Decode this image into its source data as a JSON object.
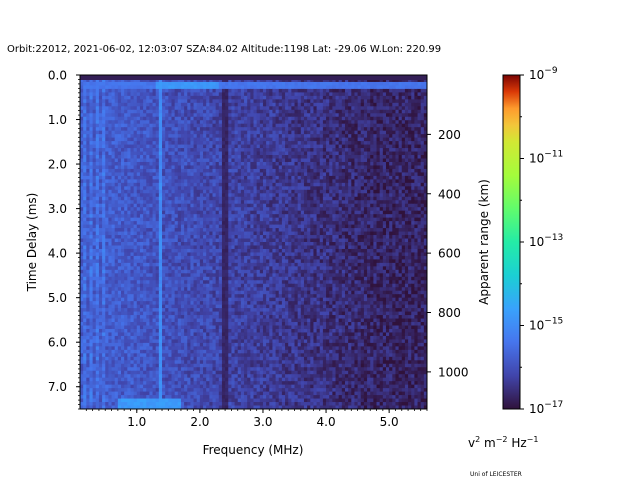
{
  "header_text": "Orbit:22012, 2021-06-02, 12:03:07 SZA:84.02 Altitude:1198 Lat: -29.06 W.Lon: 220.99",
  "credit_text": "Uni of LEICESTER",
  "chart_data": {
    "type": "heatmap",
    "title": "Orbit:22012, 2021-06-02, 12:03:07 SZA:84.02 Altitude:1198 Lat: -29.06 W.Lon: 220.99",
    "xlabel": "Frequency (MHz)",
    "ylabel": "Time Delay (ms)",
    "y2label": "Apparent range (km)",
    "colorbar_label": "v² m⁻² Hz⁻¹",
    "x_range": [
      0.1,
      5.6
    ],
    "y_range": [
      7.5,
      0.0
    ],
    "y_inverted": true,
    "x_ticks": [
      "1.0",
      "2.0",
      "3.0",
      "4.0",
      "5.0"
    ],
    "x_tick_values": [
      1.0,
      2.0,
      3.0,
      4.0,
      5.0
    ],
    "y_ticks": [
      "0.0",
      "1.0",
      "2.0",
      "3.0",
      "4.0",
      "5.0",
      "6.0",
      "7.0"
    ],
    "y_tick_values": [
      0,
      1,
      2,
      3,
      4,
      5,
      6,
      7
    ],
    "y2_ticks": [
      "200",
      "400",
      "600",
      "800",
      "1000"
    ],
    "y2_tick_values": [
      200,
      400,
      600,
      800,
      1000
    ],
    "colorbar_ticks": [
      "10^-9",
      "10^-11",
      "10^-13",
      "10^-15",
      "10^-17"
    ],
    "colorbar_exponents": [
      -9,
      -11,
      -13,
      -15,
      -17
    ],
    "colorbar_range_log10": [
      -17,
      -9
    ],
    "colormap": "turbo",
    "grid": false,
    "features": {
      "background_log10_low_freq": -15.8,
      "background_log10_high_freq": -16.7,
      "bright_line_delay_ms": 0.18,
      "bright_line_log10": -14.8,
      "bright_column_mhz": 1.35,
      "bright_column_log10": -15.0,
      "dark_column_mhz": 2.38,
      "dark_column_log10": -16.8,
      "bright_patch_delay_ms": 7.35,
      "bright_patch_mhz_range": [
        0.7,
        1.7
      ]
    }
  }
}
